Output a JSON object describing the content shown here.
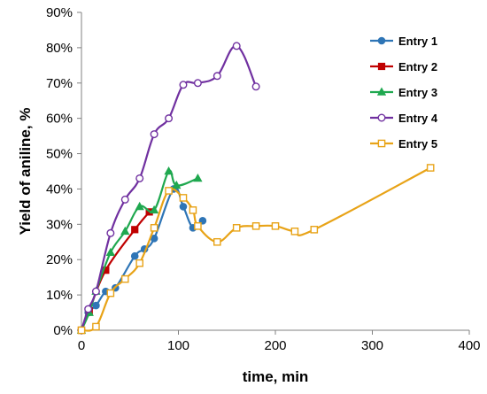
{
  "chart_data": {
    "type": "line",
    "xlabel": "time, min",
    "ylabel": "Yield of aniline, %",
    "xlim": [
      0,
      400
    ],
    "ylim": [
      0,
      90
    ],
    "x_ticks": [
      "0",
      "100",
      "200",
      "300",
      "400"
    ],
    "x_tick_values": [
      0,
      100,
      200,
      300,
      400
    ],
    "y_ticks": [
      "0%",
      "10%",
      "20%",
      "30%",
      "40%",
      "50%",
      "60%",
      "70%",
      "80%",
      "90%"
    ],
    "y_tick_values": [
      0,
      10,
      20,
      30,
      40,
      50,
      60,
      70,
      80,
      90
    ],
    "grid": false,
    "legend_position": "top-right",
    "series": [
      {
        "name": "Entry 1",
        "color": "#2e75b6",
        "marker": "circle-filled",
        "points": [
          [
            0,
            0
          ],
          [
            7,
            5
          ],
          [
            15,
            7
          ],
          [
            25,
            11
          ],
          [
            35,
            12
          ],
          [
            55,
            21
          ],
          [
            65,
            23
          ],
          [
            75,
            26
          ],
          [
            95,
            40
          ],
          [
            105,
            35
          ],
          [
            115,
            29
          ],
          [
            125,
            31
          ]
        ]
      },
      {
        "name": "Entry 2",
        "color": "#c00000",
        "marker": "square-filled",
        "points": [
          [
            0,
            0
          ],
          [
            8,
            5.5
          ],
          [
            25,
            17
          ],
          [
            55,
            28.5
          ],
          [
            70,
            33.5
          ]
        ]
      },
      {
        "name": "Entry 3",
        "color": "#1fa84f",
        "marker": "triangle-filled",
        "points": [
          [
            0,
            0
          ],
          [
            8,
            5
          ],
          [
            15,
            11
          ],
          [
            30,
            22
          ],
          [
            45,
            28
          ],
          [
            60,
            35
          ],
          [
            75,
            34
          ],
          [
            90,
            45
          ],
          [
            98,
            41
          ],
          [
            120,
            43
          ]
        ]
      },
      {
        "name": "Entry 4",
        "color": "#7030a0",
        "marker": "circle-open",
        "points": [
          [
            0,
            0
          ],
          [
            7,
            6
          ],
          [
            15,
            11
          ],
          [
            30,
            27.5
          ],
          [
            45,
            37
          ],
          [
            60,
            43
          ],
          [
            75,
            55.5
          ],
          [
            90,
            60
          ],
          [
            105,
            69.5
          ],
          [
            120,
            70
          ],
          [
            140,
            72
          ],
          [
            160,
            80.5
          ],
          [
            180,
            69
          ]
        ]
      },
      {
        "name": "Entry 5",
        "color": "#e8a317",
        "marker": "square-open",
        "points": [
          [
            0,
            0
          ],
          [
            15,
            1
          ],
          [
            30,
            10.5
          ],
          [
            45,
            14.5
          ],
          [
            60,
            19
          ],
          [
            75,
            29
          ],
          [
            90,
            39.5
          ],
          [
            105,
            37.5
          ],
          [
            115,
            34
          ],
          [
            120,
            29.5
          ],
          [
            140,
            25
          ],
          [
            160,
            29
          ],
          [
            180,
            29.5
          ],
          [
            200,
            29.5
          ],
          [
            220,
            28
          ],
          [
            240,
            28.5
          ],
          [
            360,
            46
          ]
        ]
      }
    ]
  }
}
